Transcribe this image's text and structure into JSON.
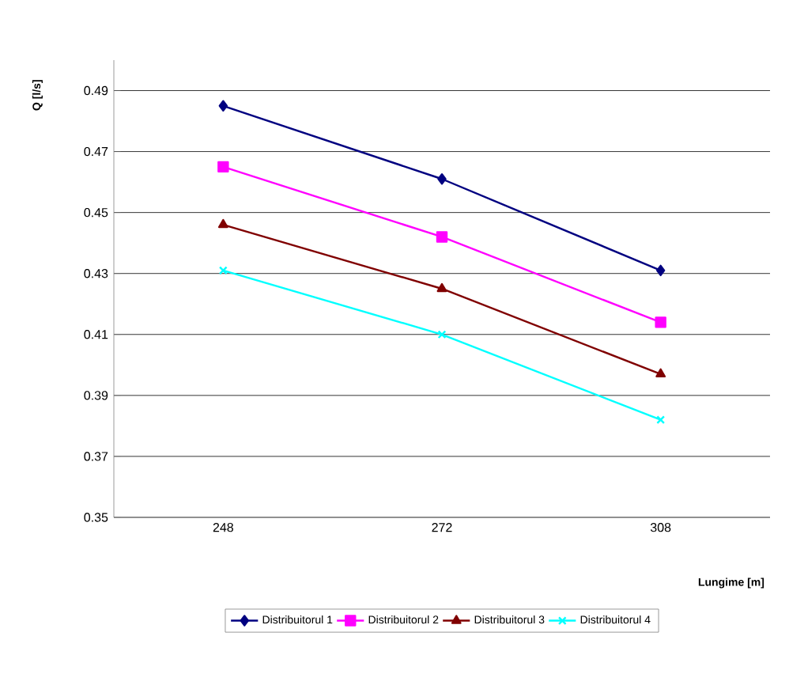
{
  "chart_data": {
    "type": "line",
    "ylabel": "Q [l/s]",
    "xlabel": "Lungime [m]",
    "categories": [
      "248",
      "272",
      "308"
    ],
    "series": [
      {
        "name": "Distribuitorul 1",
        "color": "#000080",
        "marker": "diamond",
        "values": [
          0.485,
          0.461,
          0.431
        ]
      },
      {
        "name": "Distribuitorul 2",
        "color": "#ff00ff",
        "marker": "square",
        "values": [
          0.465,
          0.442,
          0.414
        ]
      },
      {
        "name": "Distribuitorul 3",
        "color": "#800000",
        "marker": "triangle",
        "values": [
          0.446,
          0.425,
          0.397
        ]
      },
      {
        "name": "Distribuitorul 4",
        "color": "#00ffff",
        "marker": "cross",
        "values": [
          0.431,
          0.41,
          0.382
        ]
      }
    ],
    "ylim": [
      0.35,
      0.5
    ],
    "yticks": [
      0.35,
      0.37,
      0.39,
      0.41,
      0.43,
      0.45,
      0.47,
      0.49
    ],
    "grid": "y",
    "legend": "bottom",
    "line_style": "solid"
  }
}
